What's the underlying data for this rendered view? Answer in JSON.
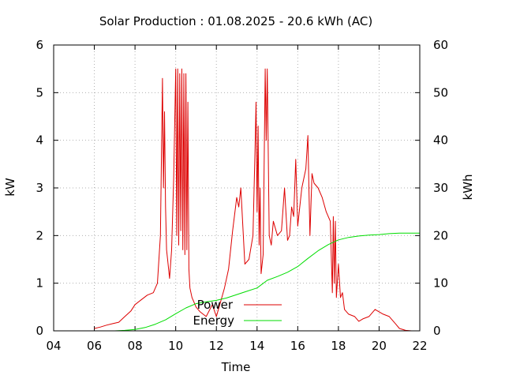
{
  "chart_data": {
    "type": "line",
    "title": "Solar Production : 01.08.2025 - 20.6 kWh (AC)",
    "xlabel": "Time",
    "ylabel": "kW",
    "y2label": "kWh",
    "xlim": [
      4,
      22
    ],
    "ylim": [
      0,
      6
    ],
    "y2lim": [
      0,
      60
    ],
    "xticks": [
      "04",
      "06",
      "08",
      "10",
      "12",
      "14",
      "16",
      "18",
      "20",
      "22"
    ],
    "yticks": [
      "0",
      "1",
      "2",
      "3",
      "4",
      "5",
      "6"
    ],
    "y2ticks": [
      "0",
      "10",
      "20",
      "30",
      "40",
      "50",
      "60"
    ],
    "grid": true,
    "legend_position": "bottom-center",
    "colors": {
      "Power": "#dd0000",
      "Energy": "#00dd00"
    },
    "series": [
      {
        "name": "Power",
        "axis": "left",
        "x": [
          6.0,
          6.3,
          6.6,
          6.9,
          7.2,
          7.5,
          7.8,
          8.0,
          8.3,
          8.6,
          8.9,
          9.1,
          9.25,
          9.35,
          9.4,
          9.45,
          9.5,
          9.55,
          9.6,
          9.7,
          9.8,
          9.9,
          10.0,
          10.05,
          10.1,
          10.15,
          10.2,
          10.25,
          10.3,
          10.35,
          10.4,
          10.45,
          10.5,
          10.55,
          10.6,
          10.65,
          10.7,
          10.8,
          10.9,
          11.0,
          11.2,
          11.5,
          11.8,
          12.0,
          12.2,
          12.4,
          12.6,
          12.8,
          13.0,
          13.1,
          13.2,
          13.4,
          13.6,
          13.8,
          13.9,
          13.95,
          14.0,
          14.05,
          14.1,
          14.15,
          14.2,
          14.3,
          14.4,
          14.45,
          14.5,
          14.6,
          14.7,
          14.8,
          15.0,
          15.2,
          15.35,
          15.5,
          15.6,
          15.7,
          15.8,
          15.9,
          16.0,
          16.2,
          16.4,
          16.5,
          16.55,
          16.6,
          16.7,
          16.8,
          17.0,
          17.2,
          17.4,
          17.6,
          17.7,
          17.75,
          17.8,
          17.85,
          17.9,
          18.0,
          18.1,
          18.2,
          18.3,
          18.5,
          18.8,
          19.0,
          19.2,
          19.5,
          19.8,
          20.0,
          20.2,
          20.5,
          20.8,
          21.0,
          21.3,
          21.6
        ],
        "values": [
          0.05,
          0.08,
          0.12,
          0.15,
          0.18,
          0.3,
          0.42,
          0.55,
          0.65,
          0.75,
          0.8,
          1.0,
          2.0,
          5.3,
          3.0,
          4.6,
          2.6,
          1.7,
          1.5,
          1.1,
          1.7,
          3.2,
          5.5,
          2.0,
          5.5,
          1.8,
          5.4,
          2.1,
          5.5,
          1.7,
          5.4,
          1.6,
          5.4,
          1.7,
          4.8,
          1.3,
          0.9,
          0.7,
          0.6,
          0.5,
          0.4,
          0.3,
          0.55,
          0.3,
          0.6,
          0.9,
          1.3,
          2.1,
          2.8,
          2.6,
          3.0,
          1.4,
          1.5,
          2.0,
          3.8,
          4.8,
          2.5,
          4.3,
          1.8,
          3.0,
          1.2,
          1.6,
          5.5,
          4.0,
          5.5,
          2.0,
          1.8,
          2.3,
          2.0,
          2.1,
          3.0,
          1.9,
          2.0,
          2.6,
          2.4,
          3.6,
          2.2,
          3.0,
          3.4,
          4.1,
          3.0,
          2.0,
          3.3,
          3.1,
          3.0,
          2.8,
          2.5,
          2.3,
          0.8,
          2.4,
          1.0,
          2.3,
          0.7,
          1.4,
          0.7,
          0.8,
          0.45,
          0.35,
          0.3,
          0.2,
          0.25,
          0.3,
          0.45,
          0.4,
          0.35,
          0.3,
          0.15,
          0.05,
          0.01,
          0.0
        ]
      },
      {
        "name": "Energy",
        "axis": "right",
        "x": [
          7.0,
          7.5,
          8.0,
          8.5,
          9.0,
          9.5,
          10.0,
          10.5,
          11.0,
          11.5,
          12.0,
          12.5,
          13.0,
          13.5,
          14.0,
          14.5,
          15.0,
          15.5,
          16.0,
          16.5,
          17.0,
          17.5,
          18.0,
          18.5,
          19.0,
          19.5,
          20.0,
          20.5,
          21.0,
          21.5,
          22.0
        ],
        "values": [
          0.0,
          0.1,
          0.3,
          0.7,
          1.4,
          2.3,
          3.6,
          4.8,
          5.7,
          6.1,
          6.4,
          6.9,
          7.6,
          8.3,
          9.0,
          10.6,
          11.4,
          12.3,
          13.5,
          15.2,
          16.8,
          18.1,
          19.1,
          19.6,
          19.9,
          20.1,
          20.2,
          20.4,
          20.5,
          20.5,
          20.5
        ]
      }
    ]
  }
}
